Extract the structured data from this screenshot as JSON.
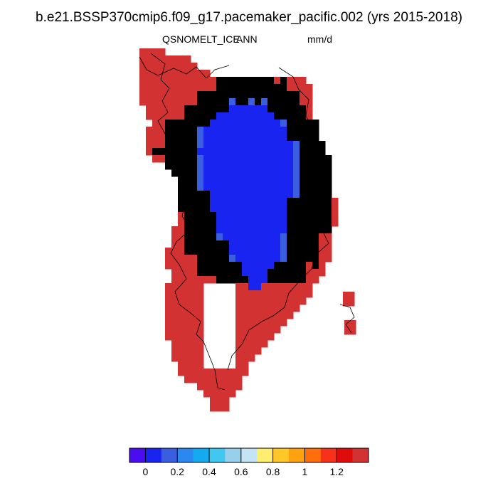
{
  "title": "b.e21.BSSP370cmip6.f09_g17.pacemaker_pacific.002 (yrs 2015-2018)",
  "variable": "QSNOMELT_ICE",
  "season": "ANN",
  "units": "mm/d",
  "colorbar": {
    "colors": [
      "#4a0cf0",
      "#1a24f0",
      "#3a5ee0",
      "#2a88f0",
      "#14aaf0",
      "#40c8f0",
      "#96d0ec",
      "#c4e4f4",
      "#ffee70",
      "#ffc828",
      "#ffa210",
      "#ff6e0a",
      "#f8321a",
      "#e00c0c",
      "#d23232"
    ],
    "tick_labels": [
      "0",
      "0.2",
      "0.4",
      "0.6",
      "0.8",
      "1",
      "1.2"
    ],
    "tick_after_box": [
      1,
      3,
      5,
      7,
      9,
      11,
      13
    ]
  }
}
